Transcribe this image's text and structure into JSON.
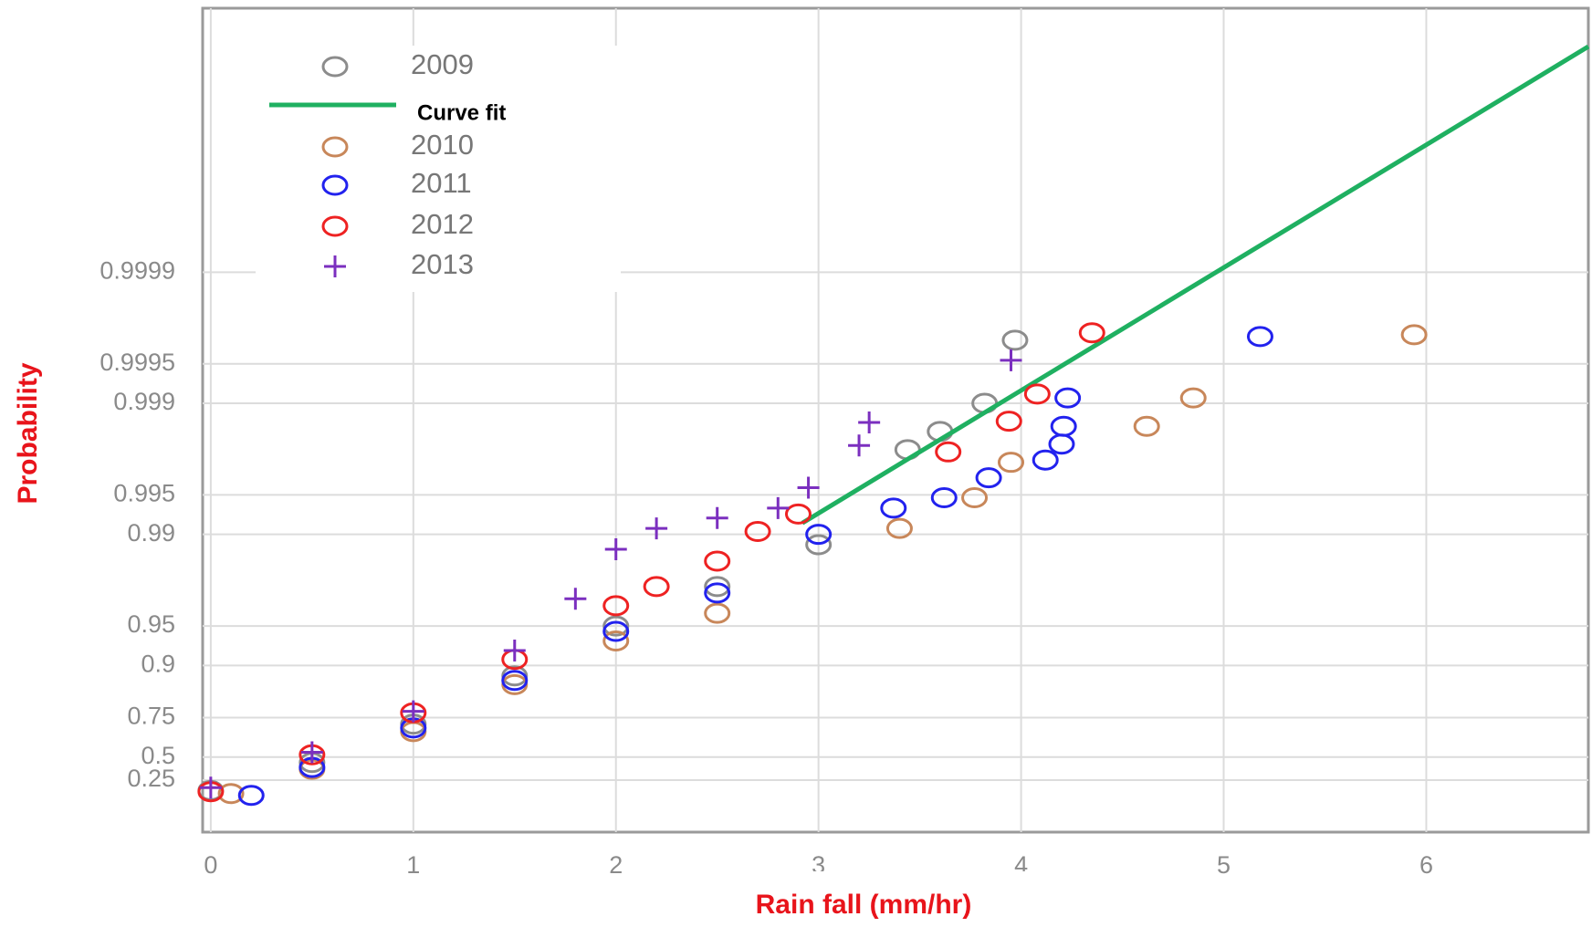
{
  "chart_data": {
    "type": "scatter",
    "y_scale": "exponential-probability",
    "x_label": "Rain fall (mm/hr)",
    "y_label": "Probability",
    "xlim": [
      -0.04,
      6.8
    ],
    "ylim": [
      0,
      0.999999
    ],
    "xticks": [
      0,
      1,
      2,
      3,
      4,
      5,
      6
    ],
    "yticks": [
      0.25,
      0.5,
      0.75,
      0.9,
      0.95,
      0.99,
      0.995,
      0.999,
      0.9995,
      0.9999
    ],
    "grid": true,
    "series": [
      {
        "name": "2009",
        "marker": "o",
        "color": "#8c8c8c",
        "x": [
          0,
          0.5,
          1,
          1.5,
          2,
          2.5,
          3,
          3.44,
          3.6,
          3.82,
          3.97
        ],
        "values": [
          0.1,
          0.45,
          0.72,
          0.88,
          0.95,
          0.975,
          0.988,
          0.99774,
          0.99836,
          0.999,
          0.99967
        ]
      },
      {
        "name": "Curve fit",
        "marker": "line",
        "color": "#1fb061",
        "x": [
          2.92,
          6.8
        ],
        "values": [
          0.9918,
          0.9999981
        ]
      },
      {
        "name": "2010",
        "marker": "o",
        "color": "#c8875a",
        "x": [
          0.1,
          0.5,
          1,
          1.5,
          2,
          2.5,
          3.4,
          3.77,
          3.95,
          4.62,
          4.85,
          5.94
        ],
        "values": [
          0.05,
          0.38,
          0.68,
          0.86,
          0.935,
          0.96,
          0.991,
          0.99475,
          0.99718,
          0.9985,
          0.99909,
          0.9997
        ]
      },
      {
        "name": "2011",
        "marker": "o",
        "color": "#2222ee",
        "x": [
          0.2,
          0.5,
          1,
          1.5,
          2,
          2.5,
          3,
          3.37,
          3.62,
          3.84,
          4.12,
          4.2,
          4.21,
          4.23,
          5.18
        ],
        "values": [
          0.02,
          0.4,
          0.7,
          0.87,
          0.945,
          0.972,
          0.99,
          0.9937,
          0.99475,
          0.9963,
          0.99729,
          0.99795,
          0.9985,
          0.99909,
          0.99969
        ]
      },
      {
        "name": "2012",
        "marker": "o",
        "color": "#ee2222",
        "x": [
          0,
          0.5,
          1,
          1.5,
          2,
          2.2,
          2.5,
          2.7,
          2.9,
          3.64,
          3.94,
          4.08,
          4.35
        ],
        "values": [
          0.08,
          0.52,
          0.77,
          0.91,
          0.965,
          0.975,
          0.984,
          0.9905,
          0.993,
          0.99765,
          0.99863,
          0.99915,
          0.99971
        ]
      },
      {
        "name": "2013",
        "marker": "+",
        "color": "#7b2fbf",
        "x": [
          0,
          0.5,
          1,
          1.5,
          1.8,
          2,
          2.2,
          2.5,
          2.8,
          2.95,
          3.2,
          3.25,
          3.95
        ],
        "values": [
          0.145,
          0.54,
          0.776,
          0.923,
          0.969,
          0.987,
          0.991,
          0.9925,
          0.9937,
          0.9956,
          0.9979,
          0.9986,
          0.99953
        ]
      }
    ]
  }
}
